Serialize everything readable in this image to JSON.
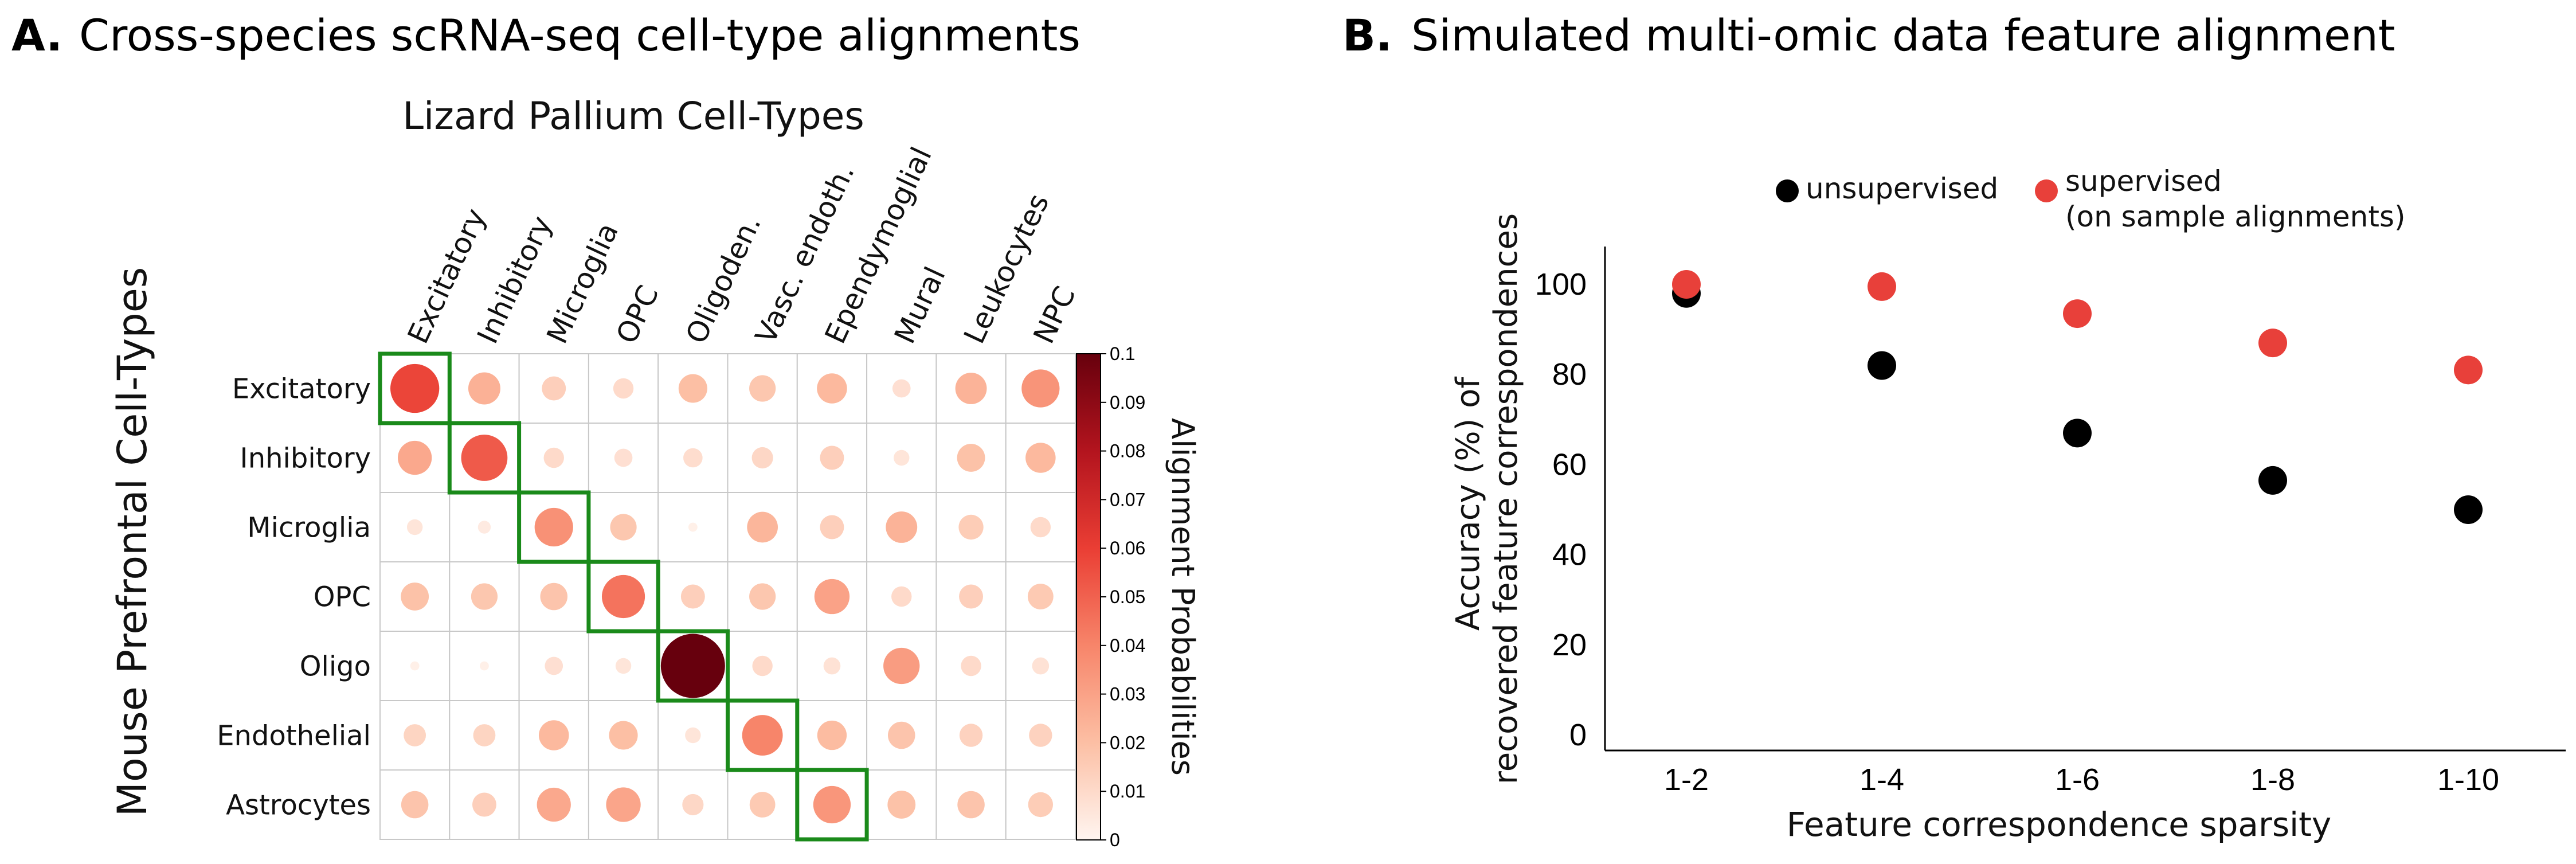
{
  "chart_data": [
    {
      "type": "heatmap",
      "panel_letter": "A.",
      "title": "Cross-species scRNA-seq cell-type alignments",
      "xlabel": "Lizard Pallium Cell-Types",
      "ylabel": "Mouse Prefrontal Cell-Types",
      "colorbar_label": "Alignment Probabilities",
      "colorbar_ticks": [
        "0.1",
        "0.09",
        "0.08",
        "0.07",
        "0.06",
        "0.05",
        "0.04",
        "0.03",
        "0.02",
        "0.01",
        "0"
      ],
      "colorbar_range": [
        0,
        0.1
      ],
      "x_categories": [
        "Excitatory",
        "Inhibitory",
        "Microglia",
        "OPC",
        "Oligoden.",
        "Vasc. endoth.",
        "Ependymoglial",
        "Mural",
        "Leukocytes",
        "NPC"
      ],
      "y_categories": [
        "Excitatory",
        "Inhibitory",
        "Microglia",
        "OPC",
        "Oligo",
        "Endothelial",
        "Astrocytes"
      ],
      "values": [
        [
          0.058,
          0.025,
          0.014,
          0.01,
          0.02,
          0.017,
          0.022,
          0.008,
          0.024,
          0.035
        ],
        [
          0.028,
          0.052,
          0.01,
          0.008,
          0.009,
          0.011,
          0.014,
          0.006,
          0.019,
          0.022
        ],
        [
          0.006,
          0.004,
          0.036,
          0.017,
          0.002,
          0.023,
          0.014,
          0.024,
          0.015,
          0.01
        ],
        [
          0.019,
          0.017,
          0.018,
          0.045,
          0.014,
          0.017,
          0.03,
          0.01,
          0.014,
          0.016
        ],
        [
          0.002,
          0.002,
          0.008,
          0.006,
          0.1,
          0.01,
          0.007,
          0.032,
          0.01,
          0.007
        ],
        [
          0.012,
          0.012,
          0.022,
          0.02,
          0.006,
          0.04,
          0.021,
          0.018,
          0.013,
          0.013
        ],
        [
          0.018,
          0.014,
          0.028,
          0.029,
          0.011,
          0.016,
          0.034,
          0.019,
          0.018,
          0.015
        ]
      ],
      "highlight": "diagonal",
      "highlight_color": "#1a8a1a"
    },
    {
      "type": "scatter",
      "panel_letter": "B.",
      "title": "Simulated multi-omic data feature alignment",
      "xlabel": "Feature correspondence sparsity",
      "ylabel": "Accuracy (%) of recovered feature correspondences",
      "categories": [
        "1-2",
        "1-4",
        "1-6",
        "1-8",
        "1-10"
      ],
      "ylim": [
        0,
        108
      ],
      "yticks": [
        0,
        20,
        40,
        60,
        80,
        100
      ],
      "legend_position": "top",
      "series": [
        {
          "name": "unsupervised",
          "color": "#000000",
          "values": [
            98,
            82,
            67,
            56.5,
            50
          ]
        },
        {
          "name": "supervised",
          "name_line2": "(on sample alignments)",
          "color": "#e8403a",
          "values": [
            100,
            99.5,
            93.5,
            87,
            81
          ]
        }
      ]
    }
  ]
}
